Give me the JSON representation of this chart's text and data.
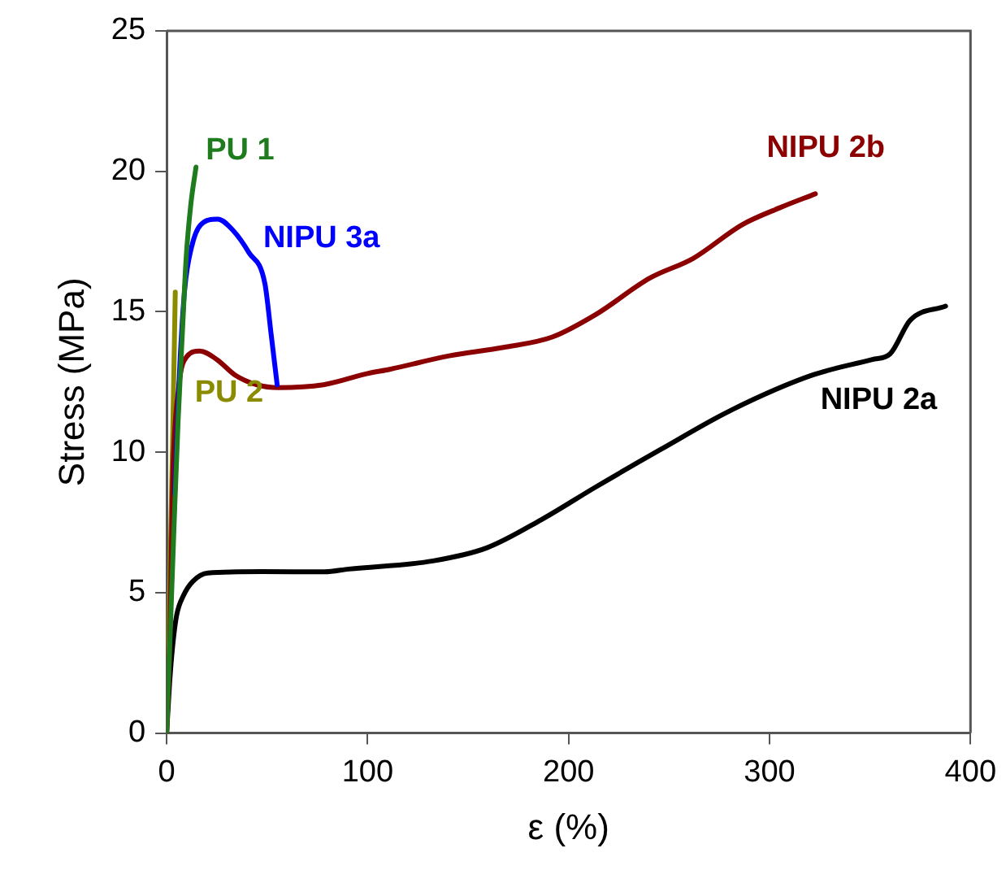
{
  "chart_data": {
    "type": "line",
    "xlabel": "ε (%)",
    "ylabel": "Stress (MPa)",
    "xlim": [
      0,
      400
    ],
    "xticks": [
      0,
      100,
      200,
      300,
      400
    ],
    "ylim": [
      0,
      25
    ],
    "yticks": [
      0,
      5,
      10,
      15,
      20,
      25
    ],
    "grid": false,
    "legend": false,
    "marker": "none",
    "line_style": "solid",
    "series": [
      {
        "name": "PU 1",
        "color": "#1e7b1e",
        "x": [
          0,
          2,
          4,
          5.7,
          8,
          9.7,
          12,
          14.6
        ],
        "values": [
          0,
          4,
          8,
          11.1,
          14.5,
          16.9,
          18.8,
          20.15
        ]
      },
      {
        "name": "NIPU 3a",
        "color": "#0000ff",
        "x": [
          4,
          6.5,
          9,
          12.4,
          17,
          25.4,
          33,
          41,
          48.9,
          52,
          55
        ],
        "values": [
          8.5,
          13,
          15.8,
          17.3,
          18.1,
          18.3,
          17.9,
          17.1,
          16,
          14.2,
          12.4
        ]
      },
      {
        "name": "NIPU 2b",
        "color": "#8b0000",
        "x": [
          0,
          1.5,
          3,
          6,
          10,
          16.5,
          25,
          34,
          45,
          55.6,
          78,
          100,
          111,
          140.6,
          167.6,
          191.9,
          213.5,
          240.5,
          262,
          286.4,
          305,
          322.8
        ],
        "values": [
          0,
          3,
          9,
          12.3,
          13.4,
          13.6,
          13.3,
          12.75,
          12.4,
          12.3,
          12.4,
          12.8,
          12.95,
          13.43,
          13.73,
          14.1,
          14.9,
          16.2,
          16.9,
          18.1,
          18.7,
          19.2
        ]
      },
      {
        "name": "PU 2",
        "color": "#8b8b00",
        "x": [
          0,
          1.5,
          3,
          4.3
        ],
        "values": [
          0,
          5,
          10.5,
          15.7
        ]
      },
      {
        "name": "NIPU 2a",
        "color": "#000000",
        "x": [
          0,
          1.5,
          3,
          5,
          8.4,
          13,
          20.5,
          47.5,
          78.5,
          90.7,
          132.5,
          159.5,
          186.5,
          213.5,
          245.9,
          281,
          321.5,
          351.2,
          360,
          370,
          387.6
        ],
        "values": [
          0,
          1.8,
          3.1,
          4.2,
          4.9,
          5.4,
          5.7,
          5.75,
          5.74,
          5.84,
          6.13,
          6.6,
          7.6,
          8.76,
          10.1,
          11.5,
          12.75,
          13.3,
          13.5,
          14.7,
          15.2
        ]
      }
    ]
  }
}
